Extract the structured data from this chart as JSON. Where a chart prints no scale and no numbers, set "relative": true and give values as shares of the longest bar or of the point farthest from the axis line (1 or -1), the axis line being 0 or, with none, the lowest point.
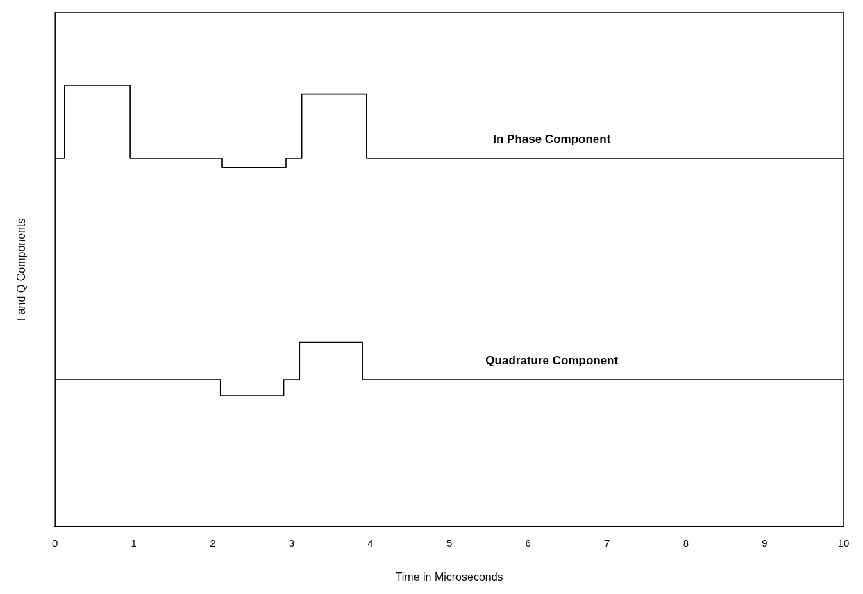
{
  "chart_data": {
    "type": "step",
    "xlabel": "Time in Microseconds",
    "ylabel": "I and Q Components",
    "relative": true,
    "xlim": [
      0,
      10
    ],
    "xticks": [
      0,
      1,
      2,
      3,
      4,
      5,
      6,
      7,
      8,
      9,
      10
    ],
    "grid": false,
    "legend": false,
    "marker": "none",
    "line_style": "solid",
    "series": [
      {
        "name": "In Phase Component",
        "color": "#000000",
        "x": [
          0,
          0.12,
          0.95,
          2.12,
          2.93,
          3.13,
          3.95,
          10
        ],
        "values": [
          0.835,
          1.0,
          0.835,
          0.814,
          0.835,
          0.98,
          0.835,
          0.835
        ]
      },
      {
        "name": "Quadrature Component",
        "color": "#000000",
        "x": [
          0,
          2.1,
          2.9,
          3.1,
          3.9,
          10
        ],
        "values": [
          0.333,
          0.297,
          0.333,
          0.417,
          0.333,
          0.333
        ]
      }
    ]
  }
}
